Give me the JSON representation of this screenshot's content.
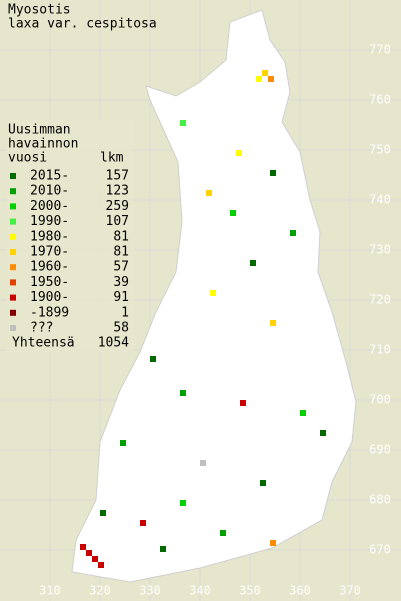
{
  "title": [
    "Myosotis",
    "laxa var. cespitosa"
  ],
  "legend": {
    "heading": [
      "Uusimman",
      "havainnon",
      "vuosi"
    ],
    "count_heading": "lkm",
    "entries": [
      {
        "label": "2015-",
        "count": "157",
        "color": "#006a00"
      },
      {
        "label": "2010-",
        "count": "123",
        "color": "#00a000"
      },
      {
        "label": "2000-",
        "count": "259",
        "color": "#00d000"
      },
      {
        "label": "1990-",
        "count": "107",
        "color": "#44f044"
      },
      {
        "label": "1980-",
        "count": "81",
        "color": "#ffff00"
      },
      {
        "label": "1970-",
        "count": "81",
        "color": "#ffd200"
      },
      {
        "label": "1960-",
        "count": "57",
        "color": "#ff8c00"
      },
      {
        "label": "1950-",
        "count": "39",
        "color": "#e04000"
      },
      {
        "label": "1900-",
        "count": "91",
        "color": "#c80000"
      },
      {
        "label": "-1899",
        "count": "1",
        "color": "#800000"
      },
      {
        "label": "???",
        "count": "58",
        "color": "#c0c0c0"
      }
    ],
    "total_label": "Yhteensä",
    "total": "1054"
  },
  "y_labels": [
    770,
    760,
    750,
    740,
    730,
    720,
    710,
    700,
    690,
    680,
    670
  ],
  "x_labels": [
    310,
    320,
    330,
    340,
    350,
    360,
    370
  ]
}
